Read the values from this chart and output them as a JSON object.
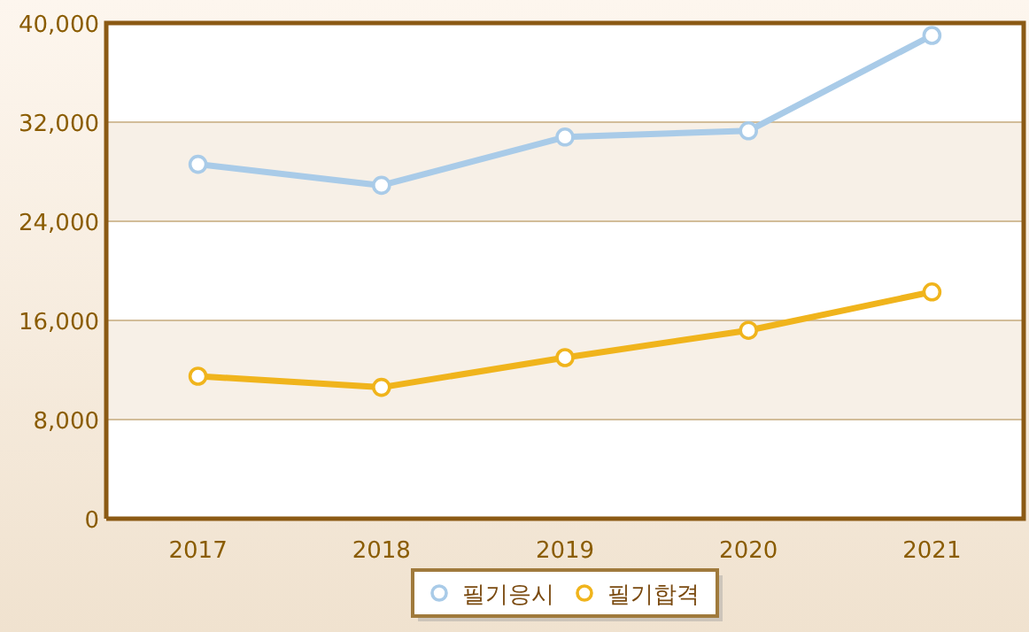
{
  "chart_data": {
    "type": "line",
    "categories": [
      "2017",
      "2018",
      "2019",
      "2020",
      "2021"
    ],
    "series": [
      {
        "name": "필기응시",
        "color": "#a9cbe8",
        "values": [
          28600,
          26900,
          30800,
          31300,
          39000
        ]
      },
      {
        "name": "필기합격",
        "color": "#f0b41c",
        "values": [
          11500,
          10600,
          13000,
          15200,
          18300
        ]
      }
    ],
    "ylim": [
      0,
      40000
    ],
    "yticks": [
      {
        "value": 0,
        "label": "0"
      },
      {
        "value": 8000,
        "label": "8,000"
      },
      {
        "value": 16000,
        "label": "16,000"
      },
      {
        "value": 24000,
        "label": "24,000"
      },
      {
        "value": 32000,
        "label": "32,000"
      },
      {
        "value": 40000,
        "label": "40,000"
      }
    ],
    "grid": "y",
    "legend": "bottom",
    "marker": "circle",
    "line_style": "solid"
  }
}
